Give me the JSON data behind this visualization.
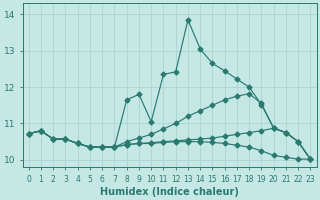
{
  "xlabel": "Humidex (Indice chaleur)",
  "ylabel": "",
  "background_color": "#c5e8e5",
  "grid_color": "#aad4d0",
  "line_color": "#2a7a70",
  "xlim": [
    -0.5,
    23.5
  ],
  "ylim": [
    9.8,
    14.3
  ],
  "xticks": [
    0,
    1,
    2,
    3,
    4,
    5,
    6,
    7,
    8,
    9,
    10,
    11,
    12,
    13,
    14,
    15,
    16,
    17,
    18,
    19,
    20,
    21,
    22,
    23
  ],
  "yticks": [
    10,
    11,
    12,
    13,
    14
  ],
  "curves": [
    {
      "x": [
        0,
        1,
        2,
        3,
        4,
        5,
        6,
        7,
        8,
        9,
        10,
        11,
        12,
        13,
        14,
        15,
        16,
        17,
        18,
        19,
        20,
        21,
        22,
        23
      ],
      "y": [
        10.72,
        10.8,
        10.57,
        10.57,
        10.45,
        10.35,
        10.35,
        10.35,
        11.65,
        11.8,
        11.05,
        12.35,
        12.42,
        13.85,
        13.05,
        12.65,
        12.45,
        12.22,
        12.0,
        11.52,
        10.87,
        10.75,
        10.5,
        10.02
      ],
      "style": "-",
      "marker": "D",
      "markersize": 2.5
    },
    {
      "x": [
        0,
        1,
        2,
        3,
        4,
        5,
        6,
        7,
        8,
        9,
        10,
        11,
        12,
        13,
        14,
        15,
        16,
        17,
        18,
        19,
        20,
        21,
        22,
        23
      ],
      "y": [
        10.72,
        10.8,
        10.57,
        10.57,
        10.45,
        10.35,
        10.35,
        10.35,
        10.5,
        10.6,
        10.7,
        10.85,
        11.0,
        11.2,
        11.35,
        11.5,
        11.65,
        11.75,
        11.82,
        11.55,
        10.87,
        10.75,
        10.5,
        10.02
      ],
      "style": "-",
      "marker": "D",
      "markersize": 2.5
    },
    {
      "x": [
        0,
        1,
        2,
        3,
        4,
        5,
        6,
        7,
        8,
        9,
        10,
        11,
        12,
        13,
        14,
        15,
        16,
        17,
        18,
        19,
        20,
        21,
        22,
        23
      ],
      "y": [
        10.72,
        10.8,
        10.57,
        10.57,
        10.45,
        10.35,
        10.35,
        10.35,
        10.42,
        10.45,
        10.45,
        10.48,
        10.5,
        10.5,
        10.5,
        10.48,
        10.45,
        10.4,
        10.35,
        10.25,
        10.12,
        10.07,
        10.02,
        10.02
      ],
      "style": "-",
      "marker": "D",
      "markersize": 2.5
    },
    {
      "x": [
        0,
        1,
        2,
        3,
        4,
        5,
        6,
        7,
        8,
        9,
        10,
        11,
        12,
        13,
        14,
        15,
        16,
        17,
        18,
        19,
        20,
        21,
        22,
        23
      ],
      "y": [
        10.72,
        10.8,
        10.57,
        10.57,
        10.45,
        10.35,
        10.35,
        10.35,
        10.42,
        10.45,
        10.47,
        10.5,
        10.52,
        10.55,
        10.57,
        10.6,
        10.65,
        10.7,
        10.75,
        10.8,
        10.87,
        10.75,
        10.5,
        10.02
      ],
      "style": "-",
      "marker": "D",
      "markersize": 2.5
    }
  ]
}
